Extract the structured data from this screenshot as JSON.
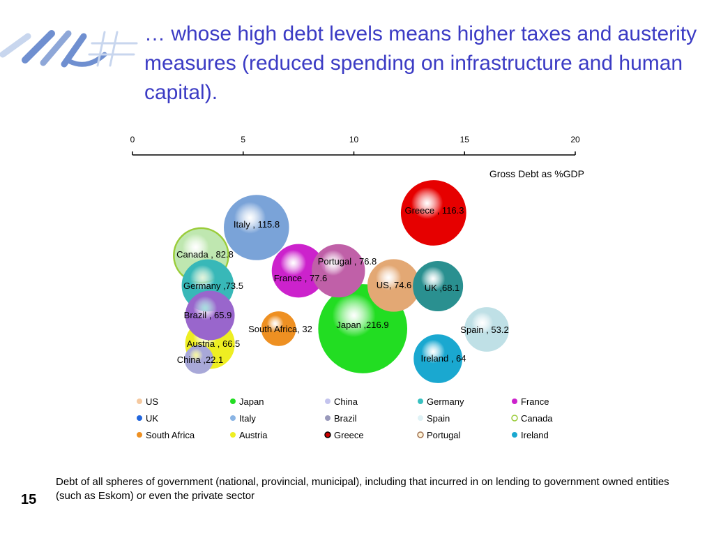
{
  "slide": {
    "title": "… whose high debt levels means higher taxes and austerity measures (reduced spending on infrastructure and human capital).",
    "footnote": "Debt of all spheres of government (national, provincial, municipal), including that incurred in on lending to government owned entities (such as Eskom) or even the private sector",
    "slide_number": "15"
  },
  "chart_data": {
    "type": "bubble",
    "xlabel": "Gross Debt as %GDP",
    "xlim": [
      0,
      20
    ],
    "xticks": [
      "0",
      "5",
      "10",
      "15",
      "20"
    ],
    "legend_position": "bottom",
    "series": [
      {
        "name": "Greece",
        "label": "Greece , 116.3",
        "x": 13.6,
        "y": 116.3,
        "size": 116.3,
        "color": "#e60000"
      },
      {
        "name": "Italy",
        "label": "Italy , 115.8",
        "x": 5.6,
        "y": 115.8,
        "size": 115.8,
        "color": "#7aa3d8"
      },
      {
        "name": "Canada",
        "label": "Canada , 82.8",
        "x": 3.1,
        "y": 82.8,
        "size": 82.8,
        "color": "#bfe7b0",
        "outline": "#9acc3a"
      },
      {
        "name": "Portugal",
        "label": "Portugal , 76.8",
        "x": 9.3,
        "y": 76.8,
        "size": 76.8,
        "color": "#c060a8"
      },
      {
        "name": "France",
        "label": "France , 77.6",
        "x": 7.5,
        "y": 77.6,
        "size": 77.6,
        "color": "#cc22cc"
      },
      {
        "name": "Germany",
        "label": "Germany ,73.5",
        "x": 3.4,
        "y": 73.5,
        "size": 73.5,
        "color": "#38b8b8"
      },
      {
        "name": "US",
        "label": "US, 74.6",
        "x": 11.8,
        "y": 74.6,
        "size": 74.6,
        "color": "#e3a874"
      },
      {
        "name": "UK",
        "label": "UK ,68.1",
        "x": 13.8,
        "y": 68.1,
        "size": 68.1,
        "color": "#2a9090"
      },
      {
        "name": "Brazil",
        "label": "Brazil , 65.9",
        "x": 3.5,
        "y": 65.9,
        "size": 65.9,
        "color": "#9966cc"
      },
      {
        "name": "South Africa",
        "label": "South Africa, 32",
        "x": 6.6,
        "y": 32,
        "size": 32,
        "color": "#ee9022"
      },
      {
        "name": "Japan",
        "label": "Japan ,216.9",
        "x": 10.4,
        "y": 216.9,
        "size": 216.9,
        "color": "#22dd22"
      },
      {
        "name": "Spain",
        "label": "Spain , 53.2",
        "x": 16.0,
        "y": 53.2,
        "size": 53.2,
        "color": "#bfe0e6"
      },
      {
        "name": "Austria",
        "label": "Austria , 66.5",
        "x": 3.5,
        "y": 66.5,
        "size": 66.5,
        "color": "#eeee22"
      },
      {
        "name": "Ireland",
        "label": "Ireland , 64",
        "x": 13.8,
        "y": 64,
        "size": 64,
        "color": "#1aa8d0"
      },
      {
        "name": "China",
        "label": "China ,22.1",
        "x": 3.0,
        "y": 22.1,
        "size": 22.1,
        "color": "#a8a8d8"
      }
    ],
    "legend": [
      {
        "name": "US",
        "color": "#f5c9a0"
      },
      {
        "name": "Japan",
        "color": "#22dd22"
      },
      {
        "name": "China",
        "color": "#c4c4ee"
      },
      {
        "name": "Germany",
        "color": "#38c0c0"
      },
      {
        "name": "France",
        "color": "#cc22cc"
      },
      {
        "name": "UK",
        "color": "#2266dd"
      },
      {
        "name": "Italy",
        "color": "#8ab4e4"
      },
      {
        "name": "Brazil",
        "color": "#9999bb"
      },
      {
        "name": "Spain",
        "color": "#dff2f6"
      },
      {
        "name": "Canada",
        "color": "#9acc3a"
      },
      {
        "name": "South Africa",
        "color": "#ee9022"
      },
      {
        "name": "Austria",
        "color": "#eeee22"
      },
      {
        "name": "Greece",
        "color": "#cc0000"
      },
      {
        "name": "Portugal",
        "color": "#a07050"
      },
      {
        "name": "Ireland",
        "color": "#1aa8d0"
      }
    ]
  }
}
